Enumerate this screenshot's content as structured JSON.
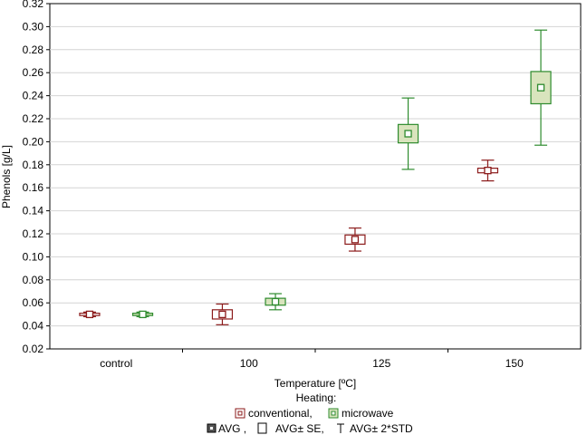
{
  "chart_data": {
    "type": "box",
    "title": "",
    "xlabel": "Temperature [ºC]",
    "ylabel": "Phenols [g/L]",
    "ylim": [
      0.02,
      0.32
    ],
    "yticks": [
      "0.02",
      "0.04",
      "0.06",
      "0.08",
      "0.10",
      "0.12",
      "0.14",
      "0.16",
      "0.18",
      "0.20",
      "0.22",
      "0.24",
      "0.26",
      "0.28",
      "0.30",
      "0.32"
    ],
    "ytick_values": [
      0.02,
      0.04,
      0.06,
      0.08,
      0.1,
      0.12,
      0.14,
      0.16,
      0.18,
      0.2,
      0.22,
      0.24,
      0.26,
      0.28,
      0.3,
      0.32
    ],
    "categories": [
      "control",
      "100",
      "125",
      "150"
    ],
    "grid": true,
    "series": [
      {
        "name": "conventional",
        "color": "#8b1a1a",
        "fill": "#ffffff",
        "avg": [
          0.05,
          0.05,
          0.115,
          0.175
        ],
        "se": [
          0.001,
          0.004,
          0.004,
          0.002
        ],
        "two_std": [
          0.002,
          0.009,
          0.01,
          0.009
        ]
      },
      {
        "name": "microwave",
        "color": "#2e8b2e",
        "fill": "#d9e4bd",
        "avg": [
          0.05,
          0.061,
          0.207,
          0.247
        ],
        "se": [
          0.001,
          0.003,
          0.008,
          0.014
        ],
        "two_std": [
          0.002,
          0.007,
          0.031,
          0.05
        ]
      }
    ],
    "legend": {
      "title": "Heating:",
      "entries": [
        "conventional,",
        "microwave"
      ],
      "stats_line": [
        "AVG ,",
        "AVG± SE,",
        "AVG± 2*STD"
      ]
    }
  }
}
